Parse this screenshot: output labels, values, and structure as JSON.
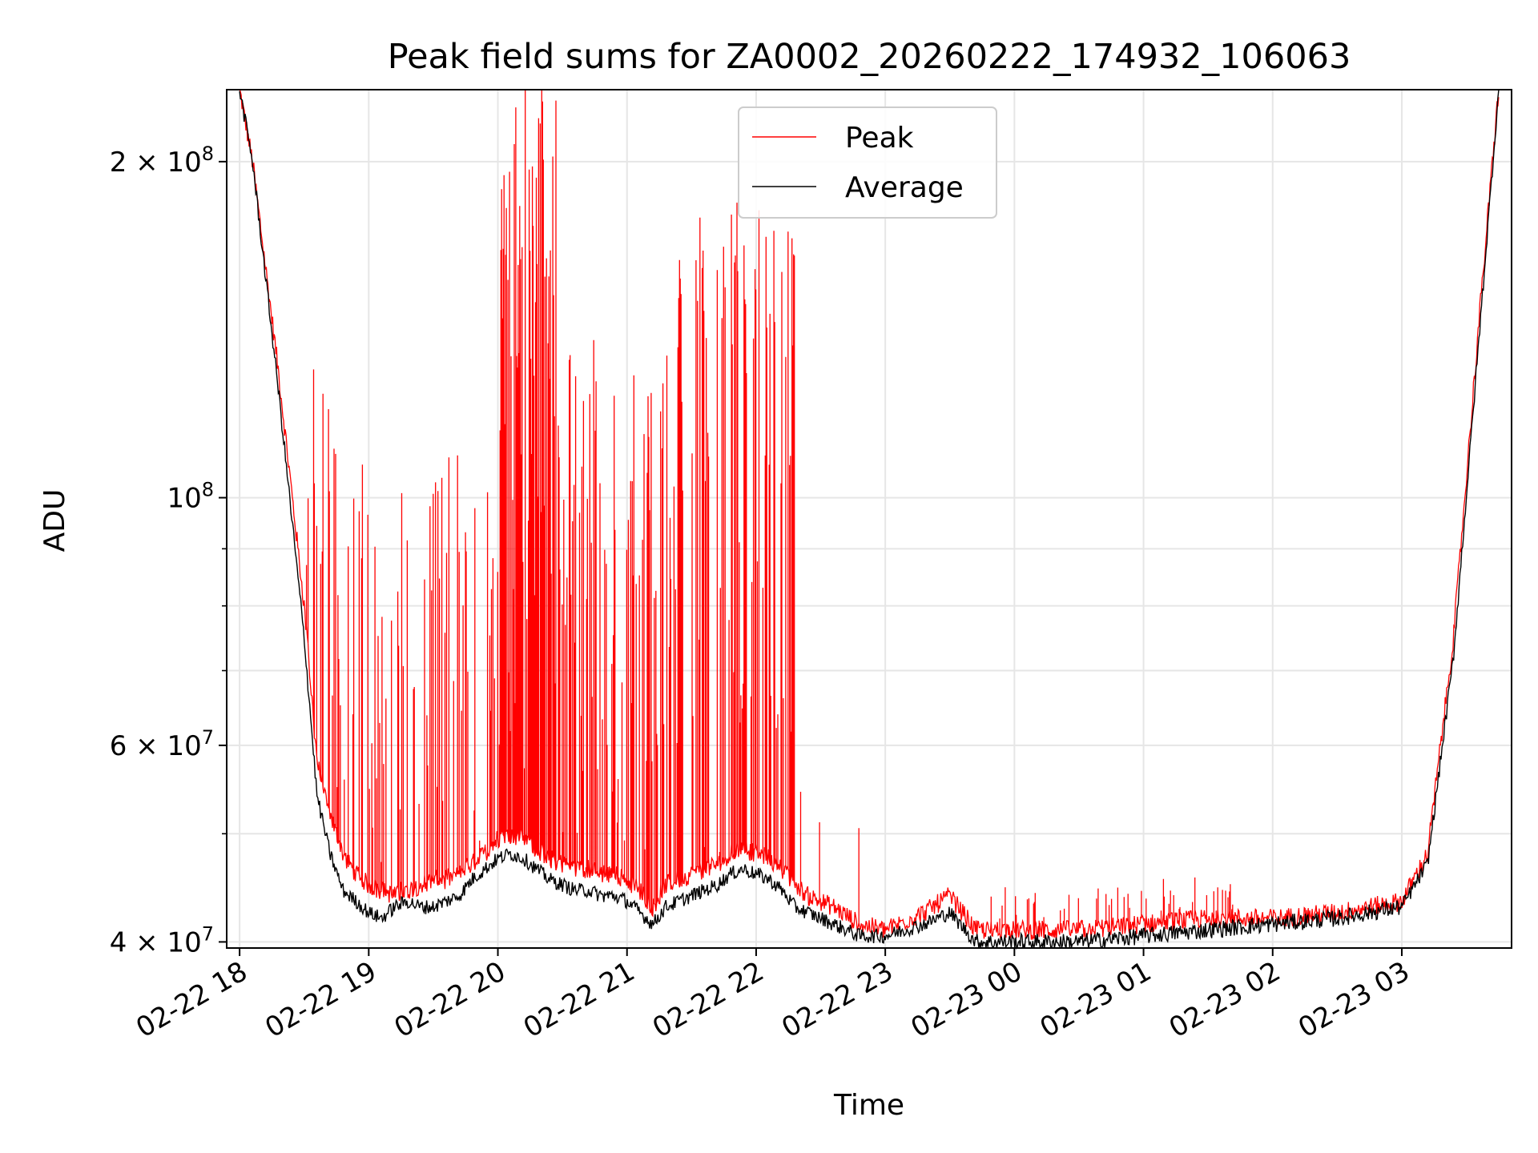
{
  "chart_data": {
    "type": "line",
    "title": "Peak field sums for ZA0002_20260222_174932_106063",
    "xlabel": "Time",
    "ylabel": "ADU",
    "yscale": "log",
    "ylim": [
      39500000,
      232000000
    ],
    "xlim_hours": [
      -0.1,
      9.85
    ],
    "x_tick_labels": [
      "02-22 18",
      "02-22 19",
      "02-22 20",
      "02-22 21",
      "02-22 22",
      "02-22 23",
      "02-23 00",
      "02-23 01",
      "02-23 02",
      "02-23 03"
    ],
    "x_tick_hours": [
      0,
      1,
      2,
      3,
      4,
      5,
      6,
      7,
      8,
      9
    ],
    "y_major_ticks": [
      {
        "value": 40000000,
        "mantissa": "4",
        "exponent": "7"
      },
      {
        "value": 60000000,
        "mantissa": "6",
        "exponent": "7"
      },
      {
        "value": 100000000,
        "mantissa": "",
        "exponent": "8"
      },
      {
        "value": 200000000,
        "mantissa": "2",
        "exponent": "8"
      }
    ],
    "y_minor_ticks": [
      50000000,
      70000000,
      80000000,
      90000000
    ],
    "grid": true,
    "legend_position": "upper center",
    "series": [
      {
        "name": "Peak",
        "color": "#ff0000",
        "style": "dense spikes over baseline",
        "x_hours": [
          0.0,
          0.1,
          0.3,
          0.5,
          0.6,
          0.7,
          0.8,
          0.9,
          1.0,
          1.1,
          1.2,
          1.3,
          1.4,
          1.5,
          1.6,
          1.7,
          1.8,
          1.9,
          2.0,
          2.1,
          2.2,
          2.3,
          2.4,
          2.5,
          2.6,
          2.7,
          2.8,
          2.9,
          3.0,
          3.1,
          3.2,
          3.3,
          3.4,
          3.5,
          3.6,
          3.7,
          3.8,
          3.9,
          4.0,
          4.1,
          4.2,
          4.3,
          4.4,
          4.6,
          4.8,
          5.0,
          5.3,
          5.5,
          5.7,
          6.0,
          6.5,
          7.0,
          7.5,
          8.0,
          8.5,
          9.0,
          9.2,
          9.4,
          9.6,
          9.75
        ],
        "values": [
          232000000,
          200000000,
          130000000,
          80000000,
          58000000,
          52000000,
          48000000,
          46000000,
          45000000,
          44500000,
          44000000,
          44500000,
          45000000,
          45500000,
          45500000,
          46000000,
          47000000,
          48000000,
          49500000,
          50000000,
          49500000,
          48500000,
          47500000,
          47000000,
          46500000,
          46500000,
          46000000,
          46000000,
          45500000,
          44500000,
          43000000,
          45000000,
          45500000,
          46000000,
          46500000,
          47000000,
          48000000,
          48500000,
          48000000,
          47500000,
          46500000,
          45000000,
          44000000,
          43000000,
          41500000,
          41000000,
          42500000,
          44000000,
          41000000,
          41000000,
          41000000,
          41500000,
          42000000,
          42000000,
          42500000,
          43500000,
          48000000,
          75000000,
          145000000,
          232000000
        ]
      },
      {
        "name": "Average",
        "color": "#000000",
        "style": "noisy line",
        "x_hours": [
          0.0,
          0.1,
          0.3,
          0.5,
          0.6,
          0.7,
          0.8,
          0.9,
          1.0,
          1.1,
          1.2,
          1.3,
          1.4,
          1.5,
          1.6,
          1.7,
          1.8,
          1.9,
          2.0,
          2.1,
          2.2,
          2.3,
          2.4,
          2.5,
          2.6,
          2.7,
          2.8,
          2.9,
          3.0,
          3.1,
          3.2,
          3.3,
          3.4,
          3.5,
          3.6,
          3.7,
          3.8,
          3.9,
          4.0,
          4.1,
          4.2,
          4.3,
          4.4,
          4.6,
          4.8,
          5.0,
          5.3,
          5.5,
          5.7,
          6.0,
          6.5,
          7.0,
          7.5,
          8.0,
          8.5,
          9.0,
          9.2,
          9.4,
          9.6,
          9.75
        ],
        "values": [
          232000000,
          200000000,
          125000000,
          75000000,
          54000000,
          48000000,
          44500000,
          43500000,
          42500000,
          42000000,
          43000000,
          43500000,
          43000000,
          43000000,
          43500000,
          44000000,
          45500000,
          46500000,
          47500000,
          48000000,
          47500000,
          46500000,
          45500000,
          45000000,
          44500000,
          44500000,
          44000000,
          44000000,
          43500000,
          42500000,
          41500000,
          43000000,
          43500000,
          44000000,
          44500000,
          45000000,
          46000000,
          46500000,
          46000000,
          45500000,
          44500000,
          43000000,
          42500000,
          41500000,
          40500000,
          40500000,
          41500000,
          42500000,
          40000000,
          40000000,
          40000000,
          40500000,
          41000000,
          41500000,
          42000000,
          43000000,
          47000000,
          72000000,
          140000000,
          232000000
        ]
      }
    ]
  }
}
